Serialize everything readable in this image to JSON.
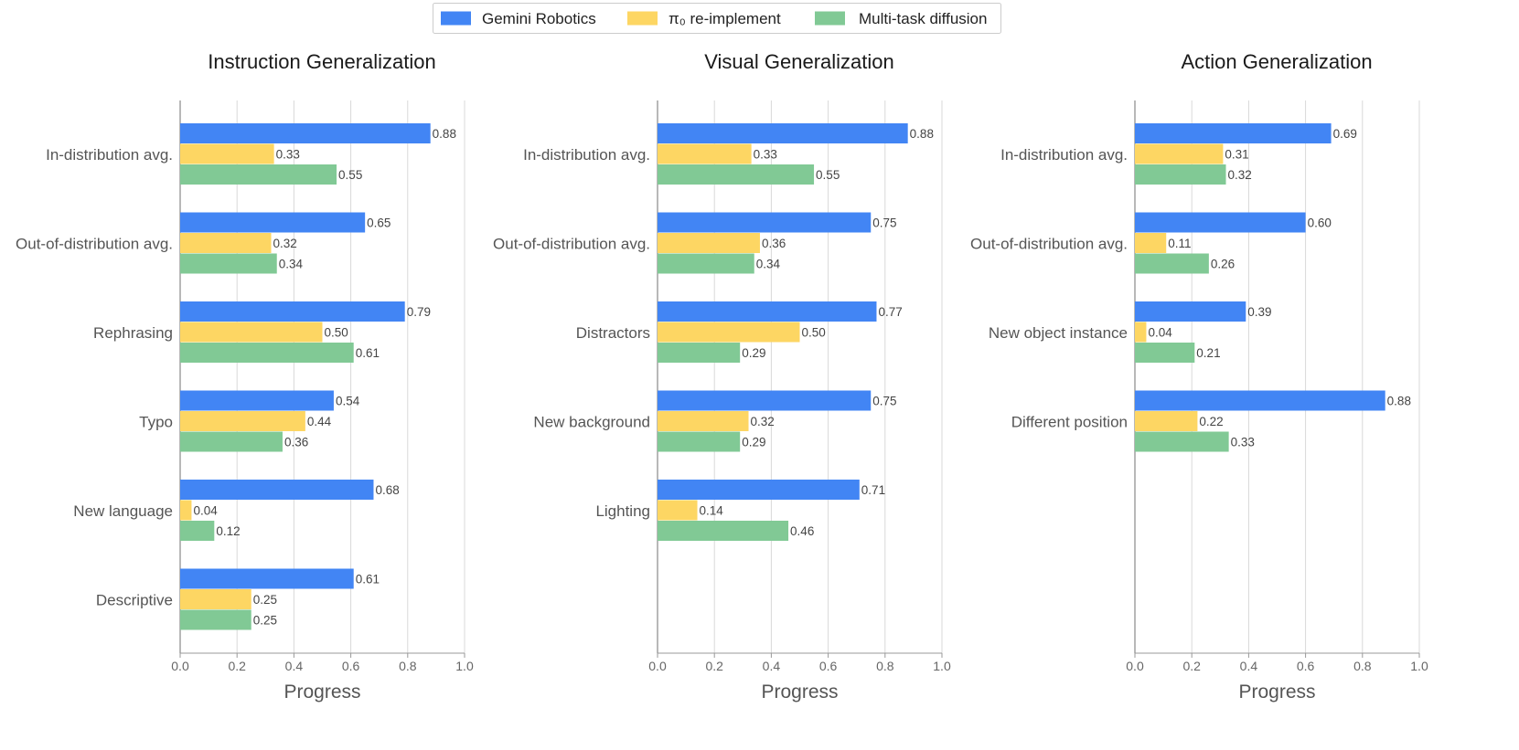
{
  "legend": {
    "entries": [
      {
        "label": "Gemini Robotics",
        "color": "#4285f4"
      },
      {
        "label": "π₀ re-implement",
        "color": "#fdd663"
      },
      {
        "label": "Multi-task diffusion",
        "color": "#81c995"
      }
    ]
  },
  "chart_data": [
    {
      "type": "bar",
      "orientation": "horizontal",
      "title": "Instruction Generalization",
      "xlabel": "Progress",
      "xlim": [
        0,
        1.0
      ],
      "xticks": [
        "0.0",
        "0.2",
        "0.4",
        "0.6",
        "0.8",
        "1.0"
      ],
      "categories": [
        "In-distribution avg.",
        "Out-of-distribution avg.",
        "Rephrasing",
        "Typo",
        "New language",
        "Descriptive"
      ],
      "series": [
        {
          "name": "Gemini Robotics",
          "values": [
            0.88,
            0.65,
            0.79,
            0.54,
            0.68,
            0.61
          ],
          "labels": [
            "0.88",
            "0.65",
            "0.79",
            "0.54",
            "0.68",
            "0.61"
          ]
        },
        {
          "name": "π₀ re-implement",
          "values": [
            0.33,
            0.32,
            0.5,
            0.44,
            0.04,
            0.25
          ],
          "labels": [
            "0.33",
            "0.32",
            "0.50",
            "0.44",
            "0.04",
            "0.25"
          ]
        },
        {
          "name": "Multi-task diffusion",
          "values": [
            0.55,
            0.34,
            0.61,
            0.36,
            0.12,
            0.25
          ],
          "labels": [
            "0.55",
            "0.34",
            "0.61",
            "0.36",
            "0.12",
            "0.25"
          ]
        }
      ]
    },
    {
      "type": "bar",
      "orientation": "horizontal",
      "title": "Visual Generalization",
      "xlabel": "Progress",
      "xlim": [
        0,
        1.0
      ],
      "xticks": [
        "0.0",
        "0.2",
        "0.4",
        "0.6",
        "0.8",
        "1.0"
      ],
      "categories": [
        "In-distribution avg.",
        "Out-of-distribution avg.",
        "Distractors",
        "New background",
        "Lighting"
      ],
      "series": [
        {
          "name": "Gemini Robotics",
          "values": [
            0.88,
            0.75,
            0.77,
            0.75,
            0.71
          ],
          "labels": [
            "0.88",
            "0.75",
            "0.77",
            "0.75",
            "0.71"
          ]
        },
        {
          "name": "π₀ re-implement",
          "values": [
            0.33,
            0.36,
            0.5,
            0.32,
            0.14
          ],
          "labels": [
            "0.33",
            "0.36",
            "0.50",
            "0.32",
            "0.14"
          ]
        },
        {
          "name": "Multi-task diffusion",
          "values": [
            0.55,
            0.34,
            0.29,
            0.29,
            0.46
          ],
          "labels": [
            "0.55",
            "0.34",
            "0.29",
            "0.29",
            "0.46"
          ]
        }
      ]
    },
    {
      "type": "bar",
      "orientation": "horizontal",
      "title": "Action Generalization",
      "xlabel": "Progress",
      "xlim": [
        0,
        1.0
      ],
      "xticks": [
        "0.0",
        "0.2",
        "0.4",
        "0.6",
        "0.8",
        "1.0"
      ],
      "categories": [
        "In-distribution avg.",
        "Out-of-distribution avg.",
        "New object instance",
        "Different position"
      ],
      "series": [
        {
          "name": "Gemini Robotics",
          "values": [
            0.69,
            0.6,
            0.39,
            0.88
          ],
          "labels": [
            "0.69",
            "0.60",
            "0.39",
            "0.88"
          ]
        },
        {
          "name": "π₀ re-implement",
          "values": [
            0.31,
            0.11,
            0.04,
            0.22
          ],
          "labels": [
            "0.31",
            "0.11",
            "0.04",
            "0.22"
          ]
        },
        {
          "name": "Multi-task diffusion",
          "values": [
            0.32,
            0.26,
            0.21,
            0.33
          ],
          "labels": [
            "0.32",
            "0.26",
            "0.21",
            "0.33"
          ]
        }
      ]
    }
  ]
}
